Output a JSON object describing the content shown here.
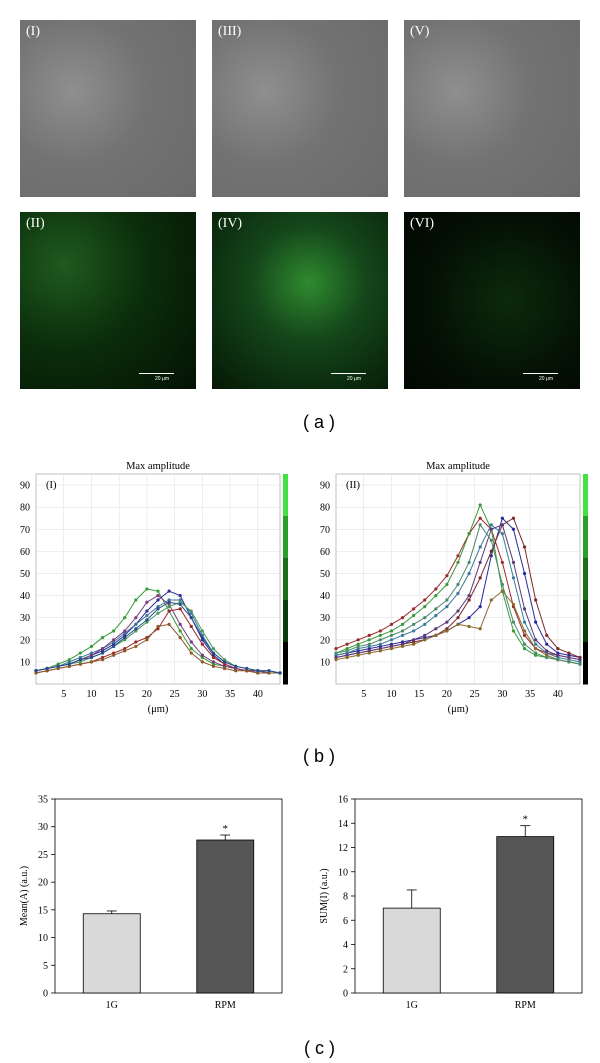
{
  "panel_a": {
    "caption": "( a )",
    "labels": [
      "(I)",
      "(III)",
      "(V)",
      "(II)",
      "(IV)",
      "(VI)"
    ],
    "scale_text": "20 μm"
  },
  "panel_b": {
    "caption": "( b )",
    "left_title": "Max amplitude",
    "left_tag": "(I)",
    "right_title": "Max amplitude",
    "right_tag": "(II)",
    "xlabel": "(μm)"
  },
  "panel_c": {
    "caption": "( c )",
    "left_ylabel": "Mean(A) (a.u.)",
    "right_ylabel": "SUM(I) (a.u.)",
    "star": "*"
  },
  "chart_data": [
    {
      "type": "line",
      "title": "Max amplitude",
      "tag": "(I)",
      "xlabel": "(μm)",
      "xlim": [
        0,
        44
      ],
      "ylim": [
        0,
        95
      ],
      "xticks": [
        5,
        10,
        15,
        20,
        25,
        30,
        35,
        40
      ],
      "yticks": [
        10,
        20,
        30,
        40,
        50,
        60,
        70,
        80,
        90
      ],
      "x": [
        0,
        2,
        4,
        6,
        8,
        10,
        12,
        14,
        16,
        18,
        20,
        22,
        24,
        26,
        28,
        30,
        32,
        34,
        36,
        38,
        40,
        42,
        44
      ],
      "series": [
        {
          "color": "#3a9a3a",
          "values": [
            6,
            7,
            9,
            11,
            14,
            17,
            21,
            24,
            30,
            38,
            43,
            42,
            33,
            24,
            16,
            12,
            9,
            8,
            7,
            6,
            6,
            5,
            5
          ]
        },
        {
          "color": "#2a2a9a",
          "values": [
            6,
            7,
            8,
            9,
            11,
            13,
            15,
            18,
            22,
            27,
            33,
            38,
            42,
            40,
            30,
            20,
            13,
            9,
            7,
            6,
            6,
            5,
            5
          ]
        },
        {
          "color": "#9a2a2a",
          "values": [
            5,
            6,
            7,
            8,
            9,
            10,
            12,
            14,
            16,
            19,
            21,
            25,
            33,
            34,
            26,
            18,
            12,
            9,
            7,
            6,
            5,
            5,
            5
          ]
        },
        {
          "color": "#3a7a9a",
          "values": [
            6,
            7,
            8,
            10,
            12,
            14,
            16,
            19,
            23,
            27,
            31,
            35,
            38,
            38,
            32,
            22,
            14,
            10,
            8,
            7,
            6,
            6,
            5
          ]
        },
        {
          "color": "#7a3a7a",
          "values": [
            6,
            7,
            8,
            9,
            11,
            13,
            16,
            20,
            24,
            30,
            37,
            40,
            36,
            27,
            19,
            13,
            10,
            8,
            7,
            6,
            6,
            5,
            5
          ]
        },
        {
          "color": "#8a5a2a",
          "values": [
            5,
            6,
            7,
            8,
            9,
            10,
            11,
            13,
            15,
            17,
            20,
            26,
            27,
            21,
            14,
            10,
            8,
            7,
            6,
            6,
            5,
            5,
            5
          ]
        },
        {
          "color": "#4a9a5a",
          "values": [
            6,
            7,
            8,
            9,
            10,
            12,
            14,
            17,
            20,
            24,
            28,
            32,
            35,
            37,
            33,
            24,
            16,
            11,
            8,
            7,
            6,
            6,
            5
          ]
        },
        {
          "color": "#2a4a8a",
          "values": [
            6,
            7,
            8,
            9,
            11,
            12,
            14,
            17,
            21,
            25,
            29,
            34,
            37,
            36,
            30,
            21,
            14,
            10,
            8,
            7,
            6,
            6,
            5
          ]
        }
      ],
      "colorbar": [
        "#000000",
        "#0b3a0b",
        "#1a6e1a",
        "#2aa02a",
        "#44e044"
      ]
    },
    {
      "type": "line",
      "title": "Max amplitude",
      "tag": "(II)",
      "xlabel": "(μm)",
      "xlim": [
        0,
        44
      ],
      "ylim": [
        0,
        95
      ],
      "xticks": [
        5,
        10,
        15,
        20,
        25,
        30,
        35,
        40
      ],
      "yticks": [
        10,
        20,
        30,
        40,
        50,
        60,
        70,
        80,
        90
      ],
      "x": [
        0,
        2,
        4,
        6,
        8,
        10,
        12,
        14,
        16,
        18,
        20,
        22,
        24,
        26,
        28,
        30,
        32,
        34,
        36,
        38,
        40,
        42,
        44
      ],
      "series": [
        {
          "color": "#9a2a2a",
          "values": [
            16,
            18,
            20,
            22,
            24,
            27,
            30,
            34,
            38,
            43,
            49,
            58,
            68,
            75,
            70,
            55,
            35,
            22,
            16,
            14,
            13,
            12,
            11
          ]
        },
        {
          "color": "#3a9a3a",
          "values": [
            14,
            16,
            18,
            20,
            22,
            24,
            27,
            31,
            35,
            40,
            45,
            55,
            68,
            81,
            70,
            42,
            24,
            16,
            13,
            12,
            11,
            10,
            9
          ]
        },
        {
          "color": "#2a2a9a",
          "values": [
            13,
            14,
            15,
            16,
            17,
            18,
            19,
            20,
            21,
            22,
            24,
            27,
            30,
            35,
            58,
            75,
            70,
            50,
            28,
            18,
            14,
            13,
            12
          ]
        },
        {
          "color": "#7a2a2a",
          "values": [
            12,
            13,
            14,
            15,
            16,
            17,
            18,
            19,
            20,
            22,
            25,
            30,
            38,
            48,
            60,
            72,
            75,
            62,
            38,
            22,
            16,
            14,
            12
          ]
        },
        {
          "color": "#3a7a9a",
          "values": [
            13,
            14,
            16,
            17,
            18,
            20,
            22,
            24,
            27,
            31,
            35,
            41,
            50,
            62,
            72,
            68,
            48,
            28,
            18,
            14,
            12,
            11,
            10
          ]
        },
        {
          "color": "#5a3a7a",
          "values": [
            12,
            13,
            14,
            15,
            16,
            17,
            18,
            20,
            22,
            25,
            28,
            33,
            40,
            55,
            70,
            72,
            55,
            34,
            20,
            15,
            13,
            12,
            11
          ]
        },
        {
          "color": "#8a6a2a",
          "values": [
            11,
            12,
            13,
            14,
            15,
            16,
            17,
            18,
            20,
            22,
            24,
            27,
            26,
            25,
            38,
            42,
            36,
            24,
            16,
            13,
            11,
            10,
            9
          ]
        },
        {
          "color": "#4a8a6a",
          "values": [
            14,
            15,
            17,
            18,
            20,
            22,
            24,
            27,
            30,
            34,
            38,
            45,
            55,
            72,
            65,
            45,
            28,
            18,
            14,
            12,
            11,
            10,
            9
          ]
        }
      ],
      "colorbar": [
        "#000000",
        "#0b3a0b",
        "#1a6e1a",
        "#2aa02a",
        "#44e044"
      ]
    },
    {
      "type": "bar",
      "categories": [
        "1G",
        "RPM"
      ],
      "values": [
        14.3,
        27.6
      ],
      "errors": [
        0.5,
        0.9
      ],
      "ylabel": "Mean(A) (a.u.)",
      "ylim": [
        0,
        35
      ],
      "yticks": [
        0,
        5,
        10,
        15,
        20,
        25,
        30,
        35
      ],
      "colors": [
        "#d9d9d9",
        "#555555"
      ],
      "significant": [
        false,
        true
      ]
    },
    {
      "type": "bar",
      "categories": [
        "1G",
        "RPM"
      ],
      "values": [
        7.0,
        12.9
      ],
      "errors": [
        1.5,
        0.9
      ],
      "ylabel": "SUM(I) (a.u.)",
      "ylim": [
        0,
        16
      ],
      "yticks": [
        0,
        2,
        4,
        6,
        8,
        10,
        12,
        14,
        16
      ],
      "colors": [
        "#d9d9d9",
        "#555555"
      ],
      "significant": [
        false,
        true
      ]
    }
  ]
}
